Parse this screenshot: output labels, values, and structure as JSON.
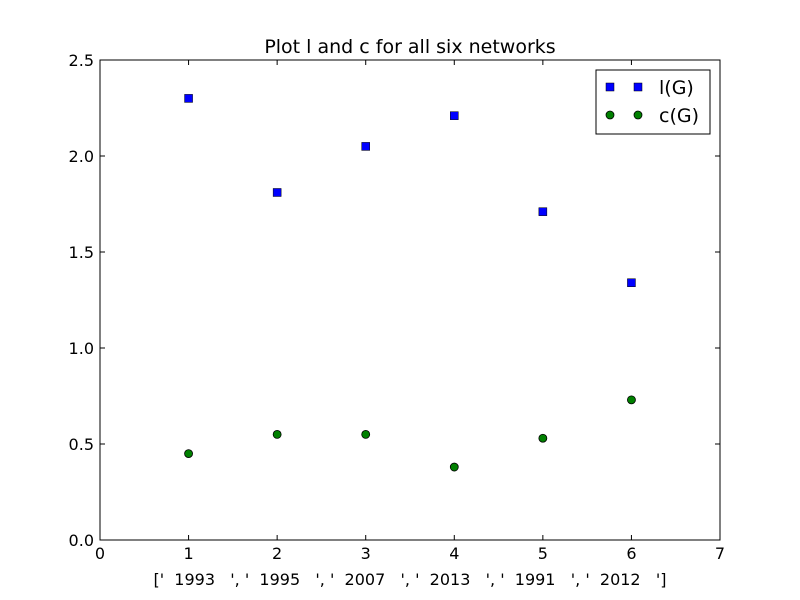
{
  "chart_data": {
    "type": "scatter",
    "title": "Plot l and c for all six networks",
    "xlabel": "['  1993   ', '  1995   ', '  2007   ', '  2013   ', '  1991   ', '  2012   ']",
    "ylabel": "",
    "xlim": [
      0,
      7
    ],
    "ylim": [
      0,
      2.5
    ],
    "x_ticks": [
      "0",
      "1",
      "2",
      "3",
      "4",
      "5",
      "6",
      "7"
    ],
    "y_ticks": [
      "0.0",
      "0.5",
      "1.0",
      "1.5",
      "2.0",
      "2.5"
    ],
    "grid": false,
    "legend_position": "top-right",
    "x": [
      1,
      2,
      3,
      4,
      5,
      6
    ],
    "series": [
      {
        "name": "l(G)",
        "marker": "square",
        "color": "#0000ff",
        "values": [
          2.3,
          1.81,
          2.05,
          2.21,
          1.71,
          1.34
        ]
      },
      {
        "name": "c(G)",
        "marker": "circle",
        "color": "#008000",
        "values": [
          0.45,
          0.55,
          0.55,
          0.38,
          0.53,
          0.73
        ]
      }
    ]
  }
}
